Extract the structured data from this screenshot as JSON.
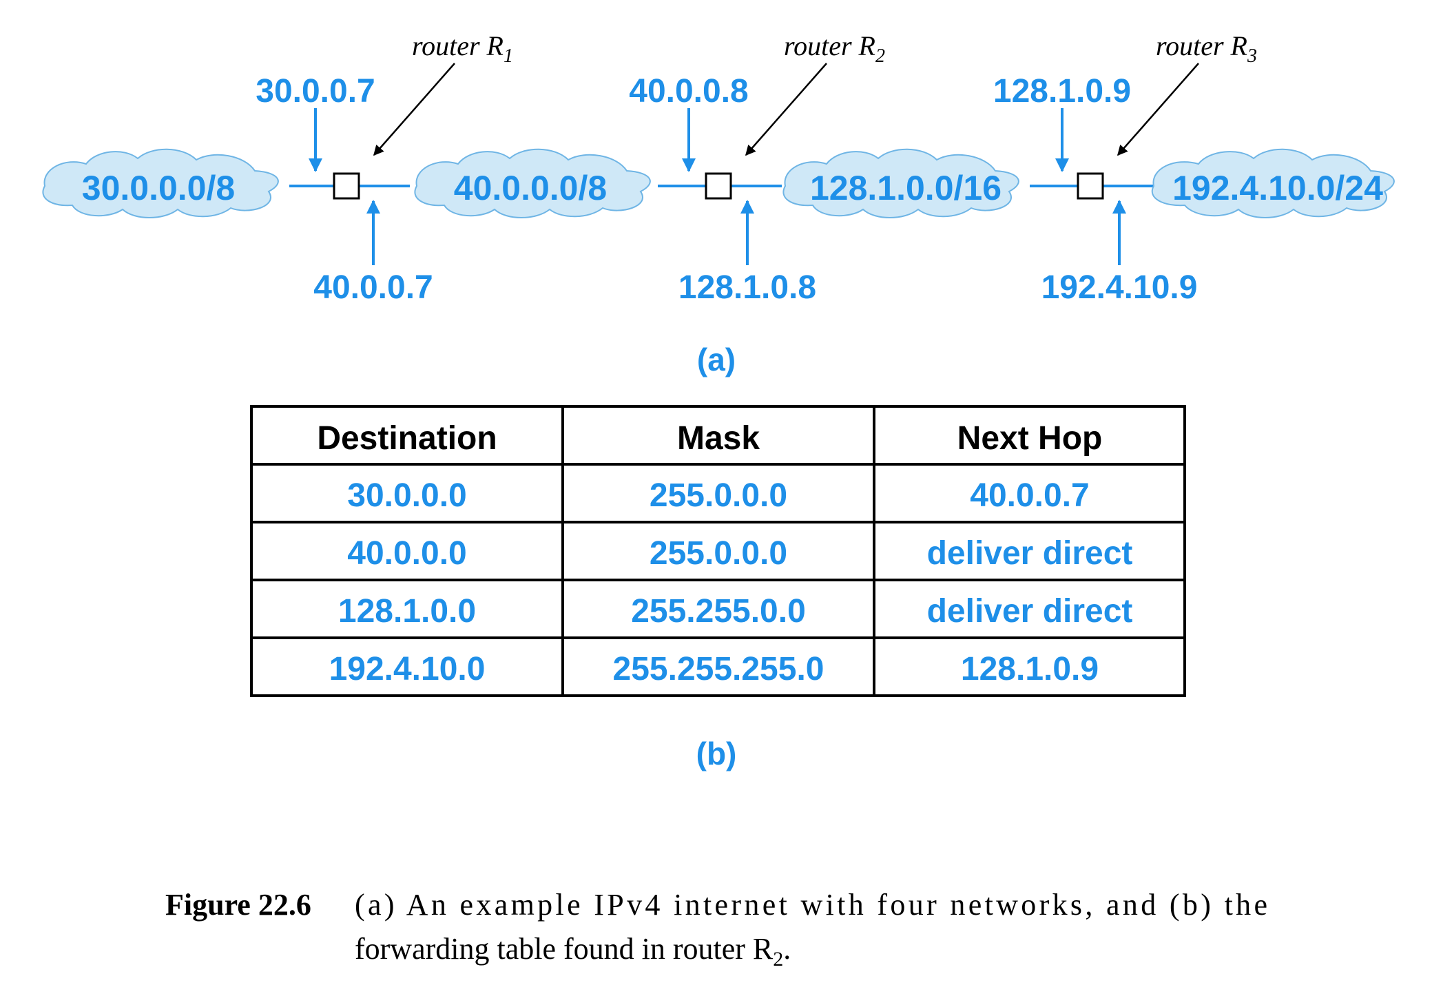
{
  "diagram_a": {
    "networks": [
      "30.0.0.0/8",
      "40.0.0.0/8",
      "128.1.0.0/16",
      "192.4.10.0/24"
    ],
    "routers": [
      {
        "name": "router R",
        "sub": "1",
        "top_addr": "30.0.0.7",
        "bottom_addr": "40.0.0.7"
      },
      {
        "name": "router R",
        "sub": "2",
        "top_addr": "40.0.0.8",
        "bottom_addr": "128.1.0.8"
      },
      {
        "name": "router R",
        "sub": "3",
        "top_addr": "128.1.0.9",
        "bottom_addr": "192.4.10.9"
      }
    ],
    "label": "(a)"
  },
  "table_b": {
    "headers": [
      "Destination",
      "Mask",
      "Next Hop"
    ],
    "rows": [
      [
        "30.0.0.0",
        "255.0.0.0",
        "40.0.0.7"
      ],
      [
        "40.0.0.0",
        "255.0.0.0",
        "deliver direct"
      ],
      [
        "128.1.0.0",
        "255.255.0.0",
        "deliver direct"
      ],
      [
        "192.4.10.0",
        "255.255.255.0",
        "128.1.0.9"
      ]
    ],
    "label": "(b)"
  },
  "caption": {
    "figure": "Figure 22.6",
    "line1": "(a) An example IPv4 internet with four networks, and (b) the",
    "line2": "forwarding table found in router R",
    "line2_sub": "2",
    "line2_end": "."
  },
  "colors": {
    "accent": "#1e8fe8",
    "cloud_fill": "#cfe8f7",
    "line": "#000000"
  }
}
